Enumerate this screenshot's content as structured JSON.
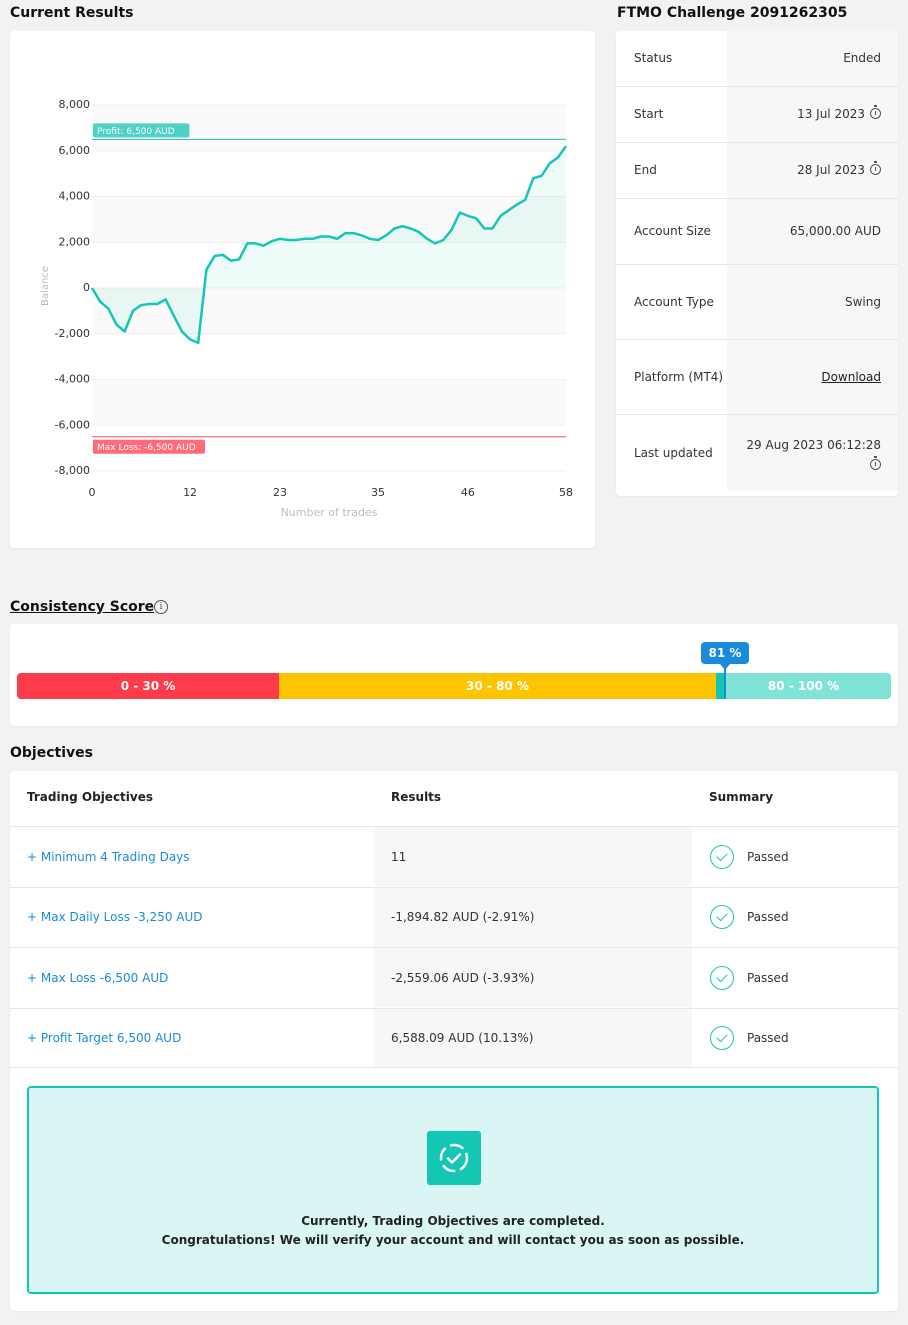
{
  "sections": {
    "current_results": "Current Results",
    "challenge_title": "FTMO Challenge 2091262305",
    "consistency": "Consistency Score",
    "objectives": "Objectives"
  },
  "chart_data": {
    "type": "area",
    "xlabel": "Number of trades",
    "ylabel": "Balance",
    "xlim": [
      0,
      58
    ],
    "ylim": [
      -8000,
      8000
    ],
    "x_ticks": [
      0,
      12,
      23,
      35,
      46,
      58
    ],
    "y_ticks": [
      8000,
      6000,
      4000,
      2000,
      0,
      -2000,
      -4000,
      -6000,
      -8000
    ],
    "y_tick_labels": [
      "8,000",
      "6,000",
      "4,000",
      "2,000",
      "0",
      "-2,000",
      "-4,000",
      "-6,000",
      "-8,000"
    ],
    "annotations": {
      "profit_label": "Profit: 6,500 AUD",
      "profit_value": 6500,
      "loss_label": "Max Loss: -6,500 AUD",
      "loss_value": -6500
    },
    "series": [
      {
        "x": [
          0,
          1,
          2,
          3,
          4,
          5,
          6,
          7,
          8,
          9,
          10,
          11,
          12,
          13,
          14,
          15,
          16,
          17,
          18,
          19,
          20,
          21,
          22,
          23,
          24,
          25,
          26,
          27,
          28,
          29,
          30,
          31,
          32,
          33,
          34,
          35,
          36,
          37,
          38,
          39,
          40,
          41,
          42,
          43,
          44,
          45,
          46,
          47,
          48,
          49,
          50,
          51,
          52,
          53,
          54,
          55,
          56,
          57,
          58
        ],
        "values": [
          0,
          -600,
          -900,
          -1600,
          -1900,
          -1000,
          -750,
          -700,
          -700,
          -500,
          -1200,
          -1900,
          -2250,
          -2400,
          800,
          1400,
          1450,
          1200,
          1250,
          1950,
          1950,
          1850,
          2050,
          2150,
          2100,
          2100,
          2150,
          2150,
          2250,
          2250,
          2150,
          2400,
          2400,
          2300,
          2150,
          2100,
          2300,
          2600,
          2700,
          2600,
          2450,
          2150,
          1950,
          2100,
          2550,
          3300,
          3150,
          3050,
          2600,
          2600,
          3150,
          3400,
          3650,
          3850,
          4800,
          4900,
          5450,
          5700,
          6200
        ]
      }
    ],
    "toolbar_icons": [
      "zoom-in-icon",
      "zoom-out-icon",
      "magnify-icon",
      "home-icon"
    ]
  },
  "info": [
    {
      "label": "Status",
      "value": "Ended"
    },
    {
      "label": "Start",
      "value": "13 Jul 2023",
      "icon": "timer-icon"
    },
    {
      "label": "End",
      "value": "28 Jul 2023",
      "icon": "timer-icon"
    },
    {
      "label": "Account Size",
      "value": "65,000.00 AUD"
    },
    {
      "label": "Account Type",
      "value": "Swing"
    },
    {
      "label": "Platform (MT4)",
      "value": "Download",
      "link": true
    },
    {
      "label": "Last updated",
      "value": "29 Aug 2023 06:12:28",
      "icon": "timer-icon"
    }
  ],
  "consistency": {
    "score": 81,
    "score_label": "81 %",
    "segments": [
      {
        "label": "0 - 30 %",
        "color": "#ff3b4b"
      },
      {
        "label": "30 - 80 %",
        "color": "#ffc400"
      },
      {
        "label": "80 - 100 %",
        "color": "#7fe3d8"
      }
    ],
    "marker_color": "#1a8adb"
  },
  "objectives": {
    "headers": [
      "Trading Objectives",
      "Results",
      "Summary"
    ],
    "rows": [
      {
        "name": "+ Minimum 4 Trading Days",
        "result": "11",
        "summary": "Passed"
      },
      {
        "name": "+ Max Daily Loss -3,250 AUD",
        "result": "-1,894.82 AUD (-2.91%)",
        "summary": "Passed"
      },
      {
        "name": "+ Max Loss -6,500 AUD",
        "result": "-2,559.06 AUD (-3.93%)",
        "summary": "Passed"
      },
      {
        "name": "+ Profit Target 6,500 AUD",
        "result": "6,588.09 AUD (10.13%)",
        "summary": "Passed"
      }
    ],
    "message_line1": "Currently, Trading Objectives are completed.",
    "message_line2": "Congratulations! We will verify your account and will contact you as soon as possible.",
    "accent": "#14c7b5"
  }
}
